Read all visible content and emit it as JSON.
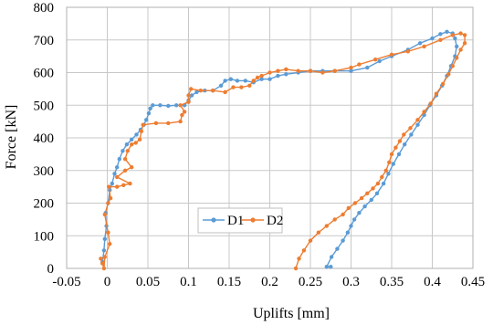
{
  "chart_data": {
    "type": "scatter",
    "xlabel": "Uplifts [mm]",
    "ylabel": "Force [kN]",
    "xlim": [
      -0.05,
      0.45
    ],
    "ylim": [
      0,
      800
    ],
    "xticks": [
      -0.05,
      0,
      0.05,
      0.1,
      0.15,
      0.2,
      0.25,
      0.3,
      0.35,
      0.4,
      0.45
    ],
    "xtick_labels": [
      "-0.05",
      "0",
      "0.05",
      "0.1",
      "0.15",
      "0.2",
      "0.25",
      "0.3",
      "0.35",
      "0.4",
      "0.45"
    ],
    "yticks": [
      0,
      100,
      200,
      300,
      400,
      500,
      600,
      700,
      800
    ],
    "ytick_labels": [
      "0",
      "100",
      "200",
      "300",
      "400",
      "500",
      "600",
      "700",
      "800"
    ],
    "grid": true,
    "legend_position": "lower-center, inside plot",
    "series": [
      {
        "name": "D1",
        "color": "#5B9BD5",
        "marker": "circle",
        "points": [
          [
            -0.006,
            20
          ],
          [
            -0.004,
            55
          ],
          [
            -0.003,
            90
          ],
          [
            -0.001,
            130
          ],
          [
            -0.002,
            170
          ],
          [
            0.001,
            200
          ],
          [
            0.003,
            240
          ],
          [
            0.006,
            260
          ],
          [
            0.009,
            290
          ],
          [
            0.012,
            310
          ],
          [
            0.015,
            335
          ],
          [
            0.019,
            360
          ],
          [
            0.024,
            380
          ],
          [
            0.03,
            395
          ],
          [
            0.036,
            410
          ],
          [
            0.041,
            425
          ],
          [
            0.045,
            440
          ],
          [
            0.048,
            455
          ],
          [
            0.051,
            475
          ],
          [
            0.053,
            490
          ],
          [
            0.056,
            500
          ],
          [
            0.065,
            500
          ],
          [
            0.075,
            498
          ],
          [
            0.085,
            500
          ],
          [
            0.095,
            500
          ],
          [
            0.1,
            515
          ],
          [
            0.104,
            530
          ],
          [
            0.11,
            540
          ],
          [
            0.12,
            545
          ],
          [
            0.13,
            545
          ],
          [
            0.14,
            560
          ],
          [
            0.145,
            575
          ],
          [
            0.152,
            580
          ],
          [
            0.16,
            575
          ],
          [
            0.17,
            575
          ],
          [
            0.18,
            570
          ],
          [
            0.19,
            580
          ],
          [
            0.2,
            580
          ],
          [
            0.21,
            590
          ],
          [
            0.22,
            595
          ],
          [
            0.235,
            600
          ],
          [
            0.25,
            605
          ],
          [
            0.265,
            605
          ],
          [
            0.28,
            605
          ],
          [
            0.3,
            605
          ],
          [
            0.32,
            615
          ],
          [
            0.335,
            635
          ],
          [
            0.35,
            650
          ],
          [
            0.37,
            670
          ],
          [
            0.385,
            690
          ],
          [
            0.4,
            705
          ],
          [
            0.41,
            718
          ],
          [
            0.418,
            725
          ],
          [
            0.425,
            720
          ],
          [
            0.428,
            705
          ],
          [
            0.43,
            680
          ],
          [
            0.428,
            650
          ],
          [
            0.423,
            620
          ],
          [
            0.418,
            590
          ],
          [
            0.412,
            560
          ],
          [
            0.405,
            530
          ],
          [
            0.397,
            500
          ],
          [
            0.39,
            470
          ],
          [
            0.382,
            440
          ],
          [
            0.374,
            410
          ],
          [
            0.366,
            380
          ],
          [
            0.359,
            350
          ],
          [
            0.352,
            320
          ],
          [
            0.346,
            290
          ],
          [
            0.34,
            260
          ],
          [
            0.332,
            230
          ],
          [
            0.325,
            210
          ],
          [
            0.317,
            190
          ],
          [
            0.31,
            170
          ],
          [
            0.304,
            150
          ],
          [
            0.3,
            130
          ],
          [
            0.296,
            110
          ],
          [
            0.29,
            85
          ],
          [
            0.283,
            60
          ],
          [
            0.276,
            35
          ],
          [
            0.27,
            5
          ],
          [
            0.275,
            5
          ]
        ]
      },
      {
        "name": "D2",
        "color": "#ED7D31",
        "marker": "circle",
        "points": [
          [
            -0.008,
            30
          ],
          [
            -0.006,
            15
          ],
          [
            -0.004,
            0
          ],
          [
            -0.003,
            35
          ],
          [
            0.003,
            75
          ],
          [
            0.001,
            110
          ],
          [
            -0.003,
            165
          ],
          [
            0.001,
            200
          ],
          [
            0.004,
            215
          ],
          [
            0.002,
            250
          ],
          [
            0.012,
            250
          ],
          [
            0.02,
            255
          ],
          [
            0.028,
            260
          ],
          [
            0.012,
            280
          ],
          [
            0.022,
            300
          ],
          [
            0.03,
            310
          ],
          [
            0.022,
            335
          ],
          [
            0.025,
            360
          ],
          [
            0.03,
            380
          ],
          [
            0.035,
            385
          ],
          [
            0.04,
            395
          ],
          [
            0.042,
            420
          ],
          [
            0.044,
            440
          ],
          [
            0.06,
            445
          ],
          [
            0.075,
            445
          ],
          [
            0.09,
            450
          ],
          [
            0.092,
            470
          ],
          [
            0.095,
            480
          ],
          [
            0.09,
            500
          ],
          [
            0.1,
            510
          ],
          [
            0.1,
            530
          ],
          [
            0.103,
            550
          ],
          [
            0.115,
            545
          ],
          [
            0.13,
            545
          ],
          [
            0.145,
            540
          ],
          [
            0.155,
            555
          ],
          [
            0.165,
            555
          ],
          [
            0.175,
            560
          ],
          [
            0.18,
            575
          ],
          [
            0.185,
            585
          ],
          [
            0.19,
            590
          ],
          [
            0.2,
            600
          ],
          [
            0.21,
            605
          ],
          [
            0.22,
            610
          ],
          [
            0.235,
            605
          ],
          [
            0.25,
            605
          ],
          [
            0.265,
            600
          ],
          [
            0.28,
            605
          ],
          [
            0.3,
            615
          ],
          [
            0.31,
            625
          ],
          [
            0.33,
            640
          ],
          [
            0.35,
            655
          ],
          [
            0.37,
            665
          ],
          [
            0.39,
            680
          ],
          [
            0.41,
            700
          ],
          [
            0.425,
            715
          ],
          [
            0.435,
            720
          ],
          [
            0.44,
            715
          ],
          [
            0.44,
            690
          ],
          [
            0.435,
            670
          ],
          [
            0.43,
            645
          ],
          [
            0.425,
            620
          ],
          [
            0.42,
            595
          ],
          [
            0.413,
            565
          ],
          [
            0.405,
            535
          ],
          [
            0.398,
            505
          ],
          [
            0.39,
            480
          ],
          [
            0.382,
            455
          ],
          [
            0.373,
            430
          ],
          [
            0.365,
            410
          ],
          [
            0.36,
            390
          ],
          [
            0.355,
            370
          ],
          [
            0.35,
            350
          ],
          [
            0.347,
            325
          ],
          [
            0.343,
            300
          ],
          [
            0.338,
            280
          ],
          [
            0.333,
            260
          ],
          [
            0.327,
            245
          ],
          [
            0.32,
            230
          ],
          [
            0.313,
            215
          ],
          [
            0.305,
            200
          ],
          [
            0.297,
            185
          ],
          [
            0.29,
            165
          ],
          [
            0.28,
            150
          ],
          [
            0.27,
            130
          ],
          [
            0.26,
            110
          ],
          [
            0.25,
            85
          ],
          [
            0.242,
            55
          ],
          [
            0.236,
            30
          ],
          [
            0.232,
            0
          ]
        ]
      }
    ]
  }
}
